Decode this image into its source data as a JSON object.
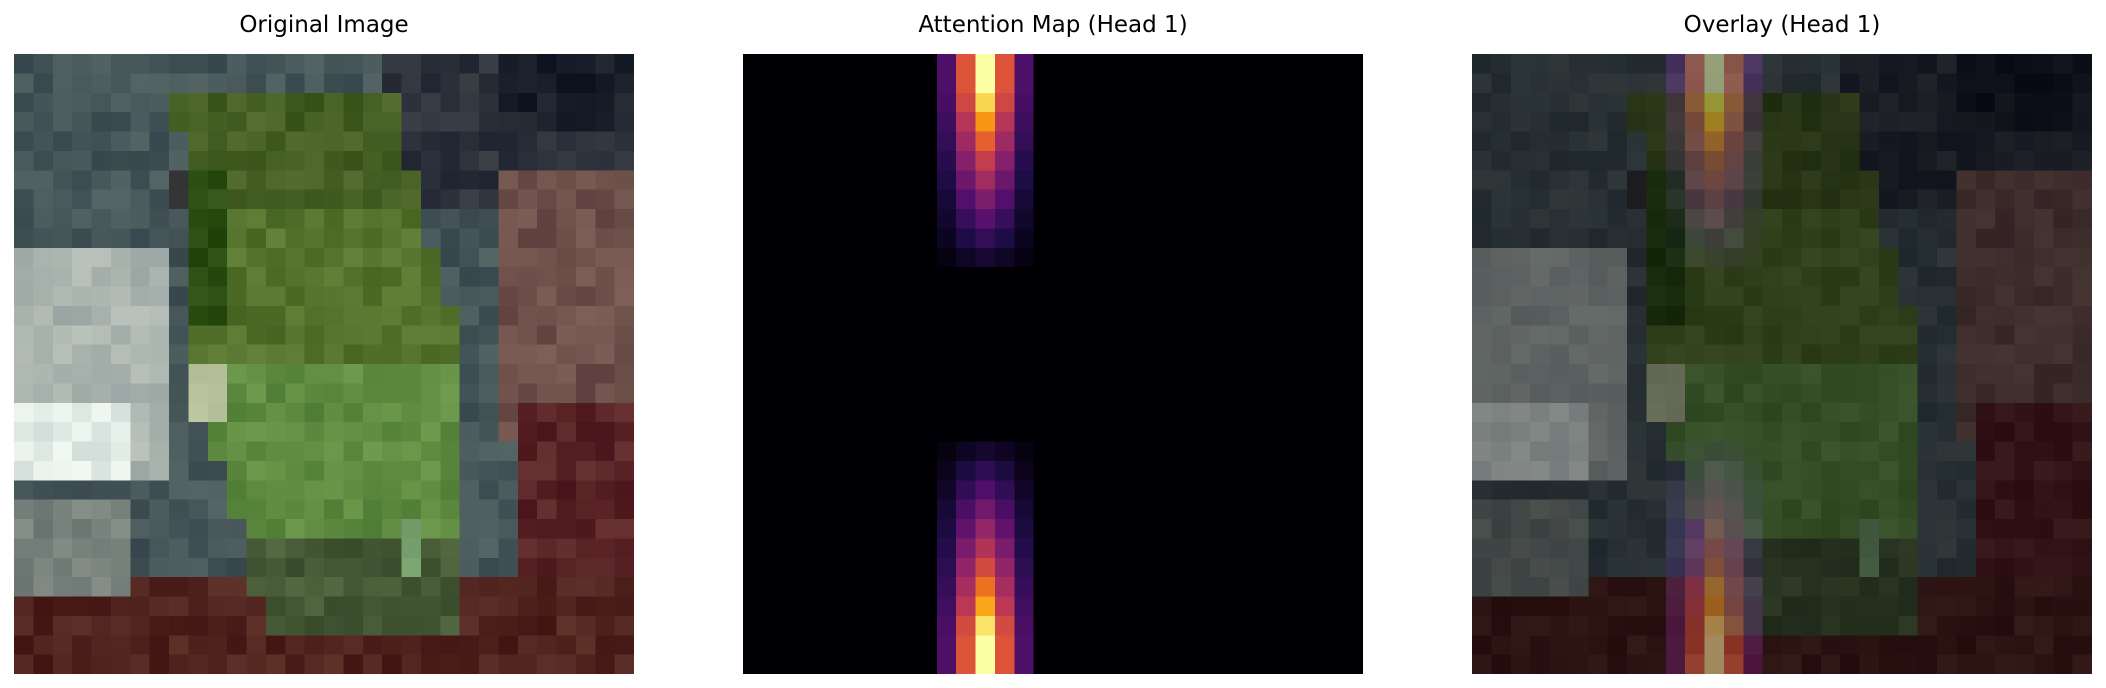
{
  "panels": [
    {
      "title": "Original Image"
    },
    {
      "title": "Attention Map (Head 1)"
    },
    {
      "title": "Overlay (Head 1)"
    }
  ],
  "attention": {
    "colormap": "inferno",
    "columns": [
      {
        "col": 10,
        "weight": 0.28
      },
      {
        "col": 11,
        "weight": 0.7
      },
      {
        "col": 12,
        "weight": 1.0
      },
      {
        "col": 13,
        "weight": 0.7
      },
      {
        "col": 14,
        "weight": 0.28
      }
    ],
    "top_band_rows": 11,
    "bottom_band_start_row": 20,
    "grid_size": 32
  }
}
